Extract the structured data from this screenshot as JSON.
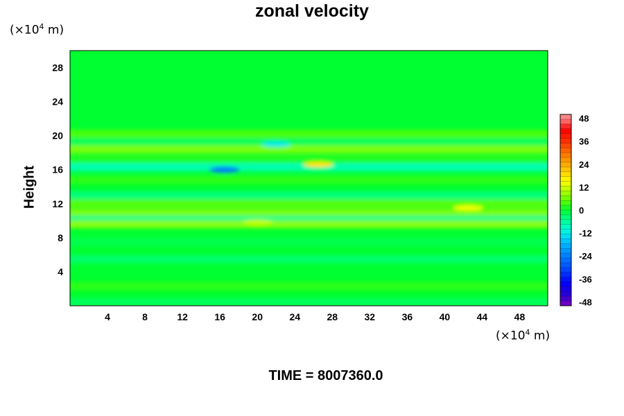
{
  "chart_data": {
    "type": "heatmap",
    "title": "zonal velocity",
    "ylabel": "Height",
    "y_unit": {
      "prefix": "(×10",
      "exp": "4",
      "suffix": " m)"
    },
    "x_unit": {
      "prefix": "(×10",
      "exp": "4",
      "suffix": " m)"
    },
    "xlim": [
      0,
      51
    ],
    "ylim": [
      0,
      30
    ],
    "x_ticks": [
      "4",
      "8",
      "12",
      "16",
      "20",
      "24",
      "28",
      "32",
      "36",
      "40",
      "44",
      "48"
    ],
    "y_ticks": [
      "4",
      "8",
      "12",
      "16",
      "20",
      "24",
      "28"
    ],
    "colorbar": {
      "range": [
        -50,
        50
      ],
      "tick_labels": [
        "48",
        "36",
        "24",
        "12",
        "0",
        "-12",
        "-24",
        "-36",
        "-48"
      ],
      "tick_values": [
        48,
        36,
        24,
        12,
        0,
        -12,
        -24,
        -36,
        -48
      ]
    },
    "bands": [
      {
        "y": 20.2,
        "value": 5
      },
      {
        "y": 19.2,
        "value": -3
      },
      {
        "y": 18.4,
        "value": 9
      },
      {
        "y": 17.2,
        "value": 2
      },
      {
        "y": 16.3,
        "value": -10
      },
      {
        "y": 14.8,
        "value": 3
      },
      {
        "y": 13.0,
        "value": -5
      },
      {
        "y": 12.0,
        "value": 6
      },
      {
        "y": 10.9,
        "value": 9
      },
      {
        "y": 10.1,
        "value": -7
      },
      {
        "y": 9.6,
        "value": 10
      },
      {
        "y": 7.5,
        "value": -2
      },
      {
        "y": 5.5,
        "value": -4
      },
      {
        "y": 2.3,
        "value": 3
      },
      {
        "y": 0.4,
        "value": -3
      }
    ],
    "features": [
      {
        "x": 16.5,
        "y": 16.0,
        "value": -24,
        "type": "min"
      },
      {
        "x": 26.5,
        "y": 16.6,
        "value": 18,
        "type": "max"
      },
      {
        "x": 42.5,
        "y": 11.5,
        "value": 14,
        "type": "max"
      },
      {
        "x": 22.0,
        "y": 19.0,
        "value": -12,
        "type": "min"
      },
      {
        "x": 20.0,
        "y": 9.8,
        "value": 11,
        "type": "max"
      }
    ]
  },
  "footer": {
    "time_label": "TIME = 8007360.0"
  }
}
